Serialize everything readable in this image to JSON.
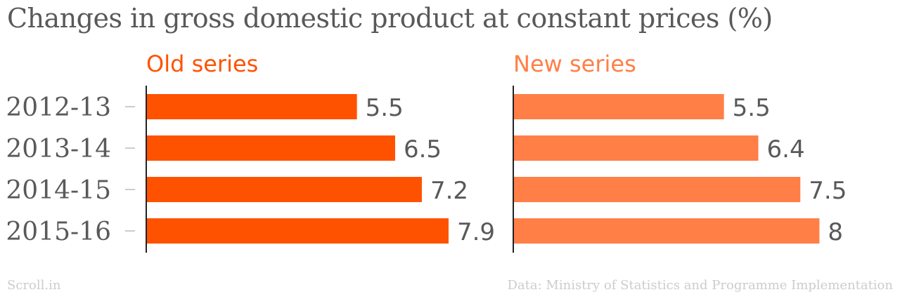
{
  "title": "Changes in gross domestic product at constant prices (%)",
  "footer": {
    "credit": "Scroll.in",
    "source": "Data: Ministry of Statistics and Programme Implementation"
  },
  "colors": {
    "old_series": "#ff5200",
    "new_series": "#ff7f47",
    "text": "#595959",
    "axis": "#222222",
    "tick": "#cccccc"
  },
  "chart_data": {
    "type": "bar",
    "orientation": "horizontal",
    "categories": [
      "2012-13",
      "2013-14",
      "2014-15",
      "2015-16"
    ],
    "series": [
      {
        "name": "Old series",
        "values": [
          5.5,
          6.5,
          7.2,
          7.9
        ]
      },
      {
        "name": "New series",
        "values": [
          5.5,
          6.4,
          7.5,
          8
        ]
      }
    ],
    "title": "Changes in gross domestic product at constant prices (%)",
    "xlabel": "",
    "ylabel": "",
    "xlim": [
      0,
      10
    ],
    "grid": false,
    "data_labels": true
  }
}
